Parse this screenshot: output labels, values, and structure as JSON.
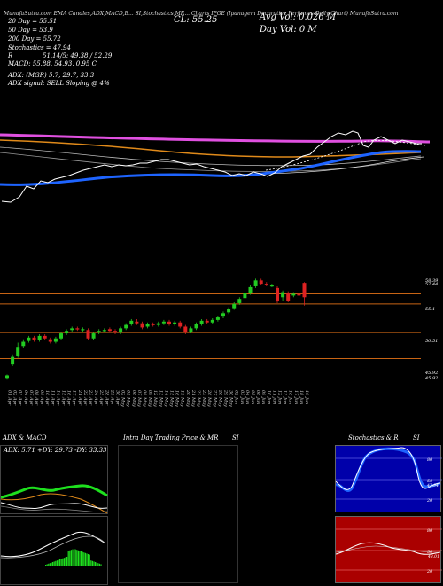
{
  "header": {
    "line": "MunafaSutra.com  EMA Candles,ADX,MACD,B...  SI,Stochastics,MR...  Charts IPGE  (Ipanagem Decorative Perfumes Daily Chart) MunafaSutra.com",
    "close_label": "CL: 55.25",
    "avg_vol_label": "Avg Vol: 0.026  M",
    "day_vol_label": "Day Vol: 0   M"
  },
  "stats": {
    "dma20": "20  Day = 55.51",
    "dma50": "50  Day = 53.9",
    "dma200": "200  Day = 55.72",
    "stochastics": "Stochastics = 47.94",
    "bollinger_r": "R",
    "bollinger": "51.14/5: 49.38 / 52.29",
    "macd": "MACD: 55.88,  54.93, 0.95 C",
    "adx": "ADX:                  (MGR) 5.7,  29.7,  33.3",
    "adx_signal": "ADX  signal: SELL  Sloping @ 4%"
  },
  "price_labels": [
    "58.39",
    "57.44",
    "55.1",
    "50.51",
    "45.92",
    "45.92"
  ],
  "panels": {
    "adx_title": "ADX  & MACD",
    "adx_readout": "ADX: 5.71  +DY: 29.73  -DY: 33.33",
    "intraday_title": "Intra Day Trading Price  & MR",
    "intraday_si": "SI",
    "stoch_title": "Stochastics & R",
    "stoch_si": "SI",
    "stoch_levels": [
      "80",
      "50",
      "20"
    ],
    "rsi_levels": [
      "80",
      "50",
      "20"
    ],
    "stoch_last": "47.94",
    "rsi_last": "48.01"
  },
  "colors": {
    "background": "#000000",
    "ema_blue": "#1e64ff",
    "ema_magenta": "#e050e0",
    "ema_orange": "#e08a1a",
    "up_candle": "#22cc22",
    "down_candle": "#dd2222",
    "support_line": "#c86414",
    "adx_green": "#1ee01e",
    "panel_blue": "#0000aa",
    "panel_red": "#aa0000"
  },
  "chart_data": {
    "type": "candlestick",
    "ticker": "IPGE",
    "dates": [
      "01 Apr",
      "02 Apr",
      "03 Apr",
      "04 Apr",
      "07 Apr",
      "08 Apr",
      "09 Apr",
      "10 Apr",
      "11 Apr",
      "14 Apr",
      "15 Apr",
      "16 Apr",
      "17 Apr",
      "21 Apr",
      "22 Apr",
      "23 Apr",
      "24 Apr",
      "25 Apr",
      "28 Apr",
      "29 Apr",
      "30 Apr",
      "02 May",
      "05 May",
      "06 May",
      "07 May",
      "08 May",
      "09 May",
      "12 May",
      "13 May",
      "14 May",
      "15 May",
      "16 May",
      "19 May",
      "20 May",
      "21 May",
      "22 May",
      "23 May",
      "26 May",
      "27 May",
      "28 May",
      "29 May",
      "30 May",
      "02 Jun",
      "03 Jun",
      "04 Jun",
      "05 Jun",
      "06 Jun",
      "09 Jun",
      "10 Jun",
      "11 Jun",
      "12 Jun",
      "13 Jun",
      "16 Jun",
      "17 Jun",
      "18 Jun",
      "19 Jun"
    ],
    "candles": [
      {
        "o": 45.6,
        "c": 45.9,
        "h": 46.0,
        "l": 45.4
      },
      {
        "o": 47.2,
        "c": 48.1,
        "h": 48.4,
        "l": 47.0
      },
      {
        "o": 48.2,
        "c": 49.3,
        "h": 49.8,
        "l": 48.0
      },
      {
        "o": 49.4,
        "c": 49.9,
        "h": 50.2,
        "l": 49.2
      },
      {
        "o": 50.0,
        "c": 50.4,
        "h": 50.6,
        "l": 49.8
      },
      {
        "o": 50.4,
        "c": 50.1,
        "h": 50.6,
        "l": 49.9
      },
      {
        "o": 50.1,
        "c": 50.6,
        "h": 50.8,
        "l": 49.9
      },
      {
        "o": 50.6,
        "c": 50.3,
        "h": 50.8,
        "l": 50.1
      },
      {
        "o": 50.2,
        "c": 49.9,
        "h": 50.4,
        "l": 49.7
      },
      {
        "o": 49.9,
        "c": 50.3,
        "h": 50.5,
        "l": 49.7
      },
      {
        "o": 50.3,
        "c": 50.9,
        "h": 51.1,
        "l": 50.1
      },
      {
        "o": 50.9,
        "c": 51.2,
        "h": 51.4,
        "l": 50.7
      },
      {
        "o": 51.3,
        "c": 51.5,
        "h": 51.7,
        "l": 51.1
      },
      {
        "o": 51.5,
        "c": 51.4,
        "h": 51.7,
        "l": 51.2
      },
      {
        "o": 51.3,
        "c": 51.4,
        "h": 51.6,
        "l": 51.1
      },
      {
        "o": 51.3,
        "c": 50.3,
        "h": 51.5,
        "l": 50.1
      },
      {
        "o": 50.3,
        "c": 50.9,
        "h": 51.1,
        "l": 50.1
      },
      {
        "o": 51.0,
        "c": 51.2,
        "h": 51.4,
        "l": 50.8
      },
      {
        "o": 51.2,
        "c": 51.3,
        "h": 51.5,
        "l": 51.0
      },
      {
        "o": 51.4,
        "c": 51.2,
        "h": 51.6,
        "l": 51.0
      },
      {
        "o": 51.2,
        "c": 51.0,
        "h": 51.4,
        "l": 50.8
      },
      {
        "o": 51.0,
        "c": 51.5,
        "h": 51.7,
        "l": 50.8
      },
      {
        "o": 51.5,
        "c": 51.9,
        "h": 52.1,
        "l": 51.3
      },
      {
        "o": 52.0,
        "c": 52.4,
        "h": 52.6,
        "l": 51.8
      },
      {
        "o": 52.3,
        "c": 52.1,
        "h": 52.6,
        "l": 51.9
      },
      {
        "o": 52.1,
        "c": 51.6,
        "h": 52.3,
        "l": 51.4
      },
      {
        "o": 51.7,
        "c": 52.0,
        "h": 52.2,
        "l": 51.5
      },
      {
        "o": 52.0,
        "c": 51.9,
        "h": 52.2,
        "l": 51.7
      },
      {
        "o": 51.9,
        "c": 52.1,
        "h": 52.3,
        "l": 51.7
      },
      {
        "o": 52.1,
        "c": 52.3,
        "h": 52.5,
        "l": 51.9
      },
      {
        "o": 52.3,
        "c": 52.0,
        "h": 52.5,
        "l": 51.8
      },
      {
        "o": 52.0,
        "c": 52.2,
        "h": 52.4,
        "l": 51.8
      },
      {
        "o": 52.2,
        "c": 51.7,
        "h": 52.4,
        "l": 51.5
      },
      {
        "o": 51.7,
        "c": 51.0,
        "h": 51.9,
        "l": 50.8
      },
      {
        "o": 51.1,
        "c": 51.5,
        "h": 51.7,
        "l": 50.9
      },
      {
        "o": 51.5,
        "c": 52.0,
        "h": 52.2,
        "l": 51.3
      },
      {
        "o": 52.0,
        "c": 52.4,
        "h": 52.6,
        "l": 51.8
      },
      {
        "o": 52.4,
        "c": 52.2,
        "h": 52.6,
        "l": 52.0
      },
      {
        "o": 52.2,
        "c": 52.5,
        "h": 52.7,
        "l": 52.0
      },
      {
        "o": 52.5,
        "c": 52.8,
        "h": 53.0,
        "l": 52.3
      },
      {
        "o": 52.9,
        "c": 53.3,
        "h": 53.5,
        "l": 52.7
      },
      {
        "o": 53.4,
        "c": 53.8,
        "h": 54.0,
        "l": 53.2
      },
      {
        "o": 53.9,
        "c": 54.4,
        "h": 54.6,
        "l": 53.7
      },
      {
        "o": 54.5,
        "c": 55.0,
        "h": 55.2,
        "l": 54.3
      },
      {
        "o": 55.1,
        "c": 55.7,
        "h": 55.9,
        "l": 54.9
      },
      {
        "o": 55.7,
        "c": 56.4,
        "h": 56.6,
        "l": 55.5
      },
      {
        "o": 56.5,
        "c": 57.2,
        "h": 57.4,
        "l": 56.3
      },
      {
        "o": 57.2,
        "c": 56.8,
        "h": 57.4,
        "l": 56.6
      },
      {
        "o": 56.8,
        "c": 56.7,
        "h": 57.0,
        "l": 56.5
      },
      {
        "o": 56.6,
        "c": 56.6,
        "h": 56.8,
        "l": 56.4
      },
      {
        "o": 56.3,
        "c": 54.7,
        "h": 56.5,
        "l": 54.5
      },
      {
        "o": 55.2,
        "c": 55.8,
        "h": 56.0,
        "l": 54.8
      },
      {
        "o": 55.7,
        "c": 54.8,
        "h": 55.9,
        "l": 54.6
      },
      {
        "o": 55.4,
        "c": 55.6,
        "h": 55.8,
        "l": 55.2
      },
      {
        "o": 55.6,
        "c": 55.4,
        "h": 55.8,
        "l": 55.2
      },
      {
        "o": 56.9,
        "c": 55.2,
        "h": 57.0,
        "l": 54.2
      }
    ],
    "support_levels": [
      55.6,
      54.4,
      51.0,
      47.9
    ],
    "ema_lines": [
      {
        "name": "20 Day",
        "color": "#ffffff"
      },
      {
        "name": "50 Day",
        "color": "#1e64ff"
      },
      {
        "name": "200 Day",
        "color": "#e050e0"
      }
    ],
    "ylim": [
      45.0,
      58.5
    ]
  }
}
